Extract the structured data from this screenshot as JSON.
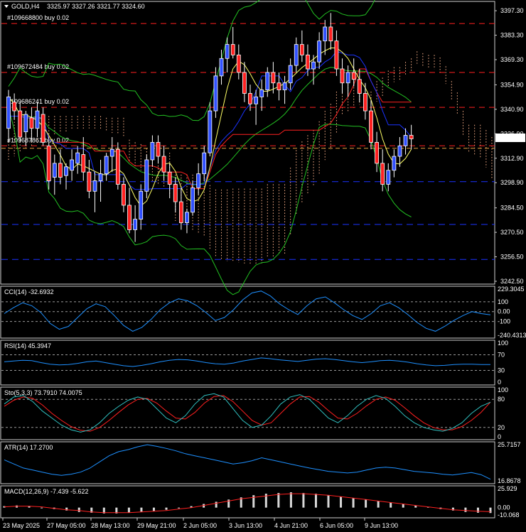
{
  "header": {
    "symbol": "GOLD,H4",
    "ohlc": "3325.97 3327.26 3321.77 3324.60"
  },
  "current_price": "3324.60",
  "orders": [
    {
      "label": "#109668800 buy 0.02",
      "price": 3390.0
    },
    {
      "label": "#109672484 buy 0.02",
      "price": 3362.0
    },
    {
      "label": "#109686241 buy 0.02",
      "price": 3342.0
    },
    {
      "label": "#109687861 buy 0.02",
      "price": 3320.0
    }
  ],
  "support_levels": [
    3299.5,
    3275.0,
    3255.0
  ],
  "main_axis": {
    "ticks": [
      "3397.30",
      "3383.30",
      "3369.30",
      "3354.90",
      "3340.90",
      "3326.90",
      "3312.90",
      "3298.90",
      "3284.50",
      "3270.50",
      "3256.50",
      "3242.50"
    ],
    "min": 3242.5,
    "max": 3401.0
  },
  "x_axis": {
    "labels": [
      "23 May 2025",
      "27 May 05:00",
      "28 May 13:00",
      "29 May 21:00",
      "2 Jun 05:00",
      "3 Jun 13:00",
      "4 Jun 21:00",
      "6 Jun 05:00",
      "9 Jun 13:00"
    ]
  },
  "indicators": {
    "cci": {
      "label": "CCI(14) -32.6932",
      "ticks": [
        "229.3045",
        "100",
        "0.00",
        "-100",
        "-240.4313"
      ]
    },
    "rsi": {
      "label": "RSI(14) 45.3947",
      "ticks": [
        "100",
        "70",
        "30",
        "0"
      ]
    },
    "sto": {
      "label": "Sto(5,3,3) 73.7910 74.0075",
      "ticks": [
        "100",
        "80",
        "20",
        "0"
      ]
    },
    "atr": {
      "label": "ATR(14) 17.2700",
      "ticks": [
        "25.7157",
        "16.8678"
      ]
    },
    "macd": {
      "label": "MACD(12,26,9) -7.439 -5.622",
      "ticks": [
        "25.929",
        "0.00",
        "-10.068"
      ]
    }
  },
  "colors": {
    "background": "#000000",
    "bull_candle": "#3050ff",
    "bear_candle": "#ff2020",
    "order_line": "#ff2020",
    "support_line": "#1a33ff",
    "ichimoku_cloud": "#ffb48c",
    "bollinger": "#22c022",
    "kijun": "#ff2020",
    "senkou": "#1a33ff",
    "ema_fast": "#ffff66",
    "indicator_line": "#1e90ff",
    "signal_line": "#ff2020"
  },
  "chart_data": {
    "type": "candlestick",
    "symbol": "GOLD",
    "timeframe": "H4",
    "ohlc": [
      [
        3330,
        3352,
        3322,
        3348
      ],
      [
        3345,
        3350,
        3335,
        3340
      ],
      [
        3340,
        3345,
        3322,
        3325
      ],
      [
        3328,
        3340,
        3320,
        3338
      ],
      [
        3336,
        3342,
        3322,
        3330
      ],
      [
        3330,
        3345,
        3325,
        3340
      ],
      [
        3338,
        3342,
        3320,
        3322
      ],
      [
        3320,
        3325,
        3295,
        3300
      ],
      [
        3302,
        3315,
        3292,
        3310
      ],
      [
        3310,
        3318,
        3298,
        3302
      ],
      [
        3303,
        3310,
        3295,
        3308
      ],
      [
        3306,
        3318,
        3300,
        3312
      ],
      [
        3310,
        3320,
        3304,
        3316
      ],
      [
        3315,
        3325,
        3300,
        3305
      ],
      [
        3305,
        3312,
        3290,
        3294
      ],
      [
        3294,
        3305,
        3282,
        3300
      ],
      [
        3300,
        3312,
        3288,
        3304
      ],
      [
        3304,
        3316,
        3300,
        3314
      ],
      [
        3314,
        3325,
        3305,
        3318
      ],
      [
        3318,
        3322,
        3295,
        3298
      ],
      [
        3298,
        3302,
        3282,
        3286
      ],
      [
        3286,
        3296,
        3270,
        3272
      ],
      [
        3272,
        3286,
        3265,
        3278
      ],
      [
        3278,
        3298,
        3272,
        3294
      ],
      [
        3294,
        3315,
        3290,
        3312
      ],
      [
        3312,
        3326,
        3308,
        3322
      ],
      [
        3322,
        3326,
        3310,
        3314
      ],
      [
        3314,
        3320,
        3300,
        3305
      ],
      [
        3305,
        3310,
        3290,
        3298
      ],
      [
        3298,
        3302,
        3282,
        3288
      ],
      [
        3288,
        3296,
        3272,
        3276
      ],
      [
        3276,
        3284,
        3270,
        3282
      ],
      [
        3282,
        3300,
        3280,
        3296
      ],
      [
        3296,
        3310,
        3292,
        3304
      ],
      [
        3304,
        3320,
        3300,
        3316
      ],
      [
        3316,
        3345,
        3314,
        3340
      ],
      [
        3340,
        3365,
        3336,
        3360
      ],
      [
        3360,
        3375,
        3355,
        3370
      ],
      [
        3370,
        3382,
        3362,
        3378
      ],
      [
        3378,
        3388,
        3370,
        3372
      ],
      [
        3372,
        3378,
        3358,
        3362
      ],
      [
        3362,
        3368,
        3345,
        3350
      ],
      [
        3350,
        3355,
        3340,
        3344
      ],
      [
        3344,
        3352,
        3332,
        3348
      ],
      [
        3348,
        3358,
        3340,
        3352
      ],
      [
        3352,
        3365,
        3348,
        3362
      ],
      [
        3362,
        3368,
        3350,
        3356
      ],
      [
        3356,
        3362,
        3346,
        3352
      ],
      [
        3352,
        3360,
        3344,
        3356
      ],
      [
        3356,
        3370,
        3352,
        3366
      ],
      [
        3366,
        3382,
        3362,
        3378
      ],
      [
        3378,
        3386,
        3368,
        3372
      ],
      [
        3372,
        3378,
        3360,
        3364
      ],
      [
        3364,
        3372,
        3355,
        3368
      ],
      [
        3368,
        3385,
        3364,
        3380
      ],
      [
        3380,
        3392,
        3372,
        3388
      ],
      [
        3388,
        3396,
        3375,
        3380
      ],
      [
        3380,
        3386,
        3360,
        3364
      ],
      [
        3364,
        3370,
        3350,
        3356
      ],
      [
        3356,
        3366,
        3348,
        3362
      ],
      [
        3362,
        3370,
        3354,
        3358
      ],
      [
        3358,
        3364,
        3345,
        3350
      ],
      [
        3350,
        3356,
        3335,
        3340
      ],
      [
        3340,
        3346,
        3318,
        3322
      ],
      [
        3322,
        3328,
        3305,
        3310
      ],
      [
        3310,
        3318,
        3294,
        3298
      ],
      [
        3298,
        3310,
        3294,
        3306
      ],
      [
        3306,
        3318,
        3302,
        3314
      ],
      [
        3314,
        3325,
        3308,
        3320
      ],
      [
        3320,
        3330,
        3315,
        3326
      ],
      [
        3326,
        3332,
        3318,
        3324
      ]
    ],
    "price_range": [
      3242.5,
      3401.0
    ],
    "x_labels": [
      "23 May 2025",
      "27 May 05:00",
      "28 May 13:00",
      "29 May 21:00",
      "2 Jun 05:00",
      "3 Jun 13:00",
      "4 Jun 21:00",
      "6 Jun 05:00",
      "9 Jun 13:00"
    ],
    "indicators": {
      "cci": [
        -20,
        40,
        90,
        60,
        -10,
        -120,
        -180,
        -150,
        -60,
        30,
        80,
        50,
        -40,
        -140,
        -200,
        -160,
        -80,
        20,
        90,
        130,
        110,
        60,
        -10,
        -90,
        -60,
        20,
        120,
        190,
        210,
        160,
        80,
        20,
        -30,
        60,
        130,
        150,
        90,
        20,
        -40,
        -80,
        -20,
        60,
        90,
        40,
        -30,
        -110,
        -170,
        -200,
        -150,
        -90,
        -40,
        0,
        -20,
        -33
      ],
      "rsi": [
        52,
        54,
        56,
        55,
        50,
        46,
        44,
        45,
        48,
        52,
        54,
        50,
        46,
        42,
        40,
        43,
        47,
        52,
        56,
        58,
        57,
        54,
        50,
        47,
        46,
        49,
        54,
        58,
        62,
        60,
        57,
        55,
        53,
        56,
        59,
        60,
        58,
        55,
        52,
        50,
        52,
        55,
        56,
        54,
        51,
        47,
        44,
        42,
        43,
        45,
        46,
        46,
        45,
        45
      ],
      "sto_main": [
        70,
        85,
        88,
        75,
        55,
        40,
        25,
        15,
        10,
        15,
        30,
        50,
        65,
        78,
        85,
        80,
        60,
        40,
        30,
        45,
        70,
        88,
        92,
        85,
        60,
        35,
        20,
        25,
        45,
        70,
        85,
        90,
        80,
        60,
        40,
        30,
        45,
        65,
        80,
        88,
        82,
        65,
        45,
        30,
        20,
        15,
        12,
        18,
        30,
        50,
        65,
        74
      ],
      "sto_signal": [
        65,
        78,
        85,
        82,
        68,
        50,
        35,
        22,
        14,
        12,
        20,
        35,
        52,
        68,
        80,
        82,
        72,
        55,
        40,
        38,
        52,
        72,
        86,
        88,
        75,
        55,
        35,
        25,
        30,
        50,
        70,
        85,
        86,
        74,
        56,
        40,
        38,
        50,
        66,
        80,
        85,
        78,
        62,
        45,
        30,
        20,
        15,
        15,
        22,
        35,
        52,
        74
      ],
      "atr": [
        22,
        21,
        20,
        19.5,
        19,
        18.5,
        18.2,
        18.5,
        19,
        20,
        21.5,
        23,
        24,
        24.5,
        25.2,
        25.7,
        25.3,
        24.8,
        24.2,
        23.5,
        23,
        22.5,
        22,
        21.5,
        21,
        21.3,
        21.8,
        22.5,
        22,
        21.5,
        21,
        20.5,
        20,
        19.6,
        19.2,
        19,
        18.8,
        19,
        19.5,
        20,
        20.2,
        20,
        19.6,
        19.2,
        19,
        18.8,
        18.5,
        18.3,
        18.6,
        18.9,
        18.4,
        17.27
      ],
      "macd_hist": [
        2,
        3,
        2,
        0,
        -2,
        -4,
        -6,
        -7,
        -8,
        -8,
        -7,
        -6,
        -5,
        -3,
        -1,
        2,
        5,
        8,
        11,
        14,
        17,
        19,
        20,
        21,
        20,
        19,
        17,
        15,
        13,
        11,
        9,
        7,
        5,
        3,
        1,
        -2,
        -4,
        -6,
        -7,
        -7.4
      ],
      "macd_signal": [
        1,
        2,
        2,
        1,
        -1,
        -3,
        -4,
        -6,
        -7,
        -7,
        -7,
        -6,
        -5,
        -4,
        -2,
        0,
        3,
        6,
        9,
        12,
        14,
        16,
        18,
        19,
        19,
        18,
        17,
        15,
        13,
        11,
        9,
        7,
        5,
        3,
        1,
        -1,
        -3,
        -4,
        -5,
        -5.6
      ]
    }
  }
}
